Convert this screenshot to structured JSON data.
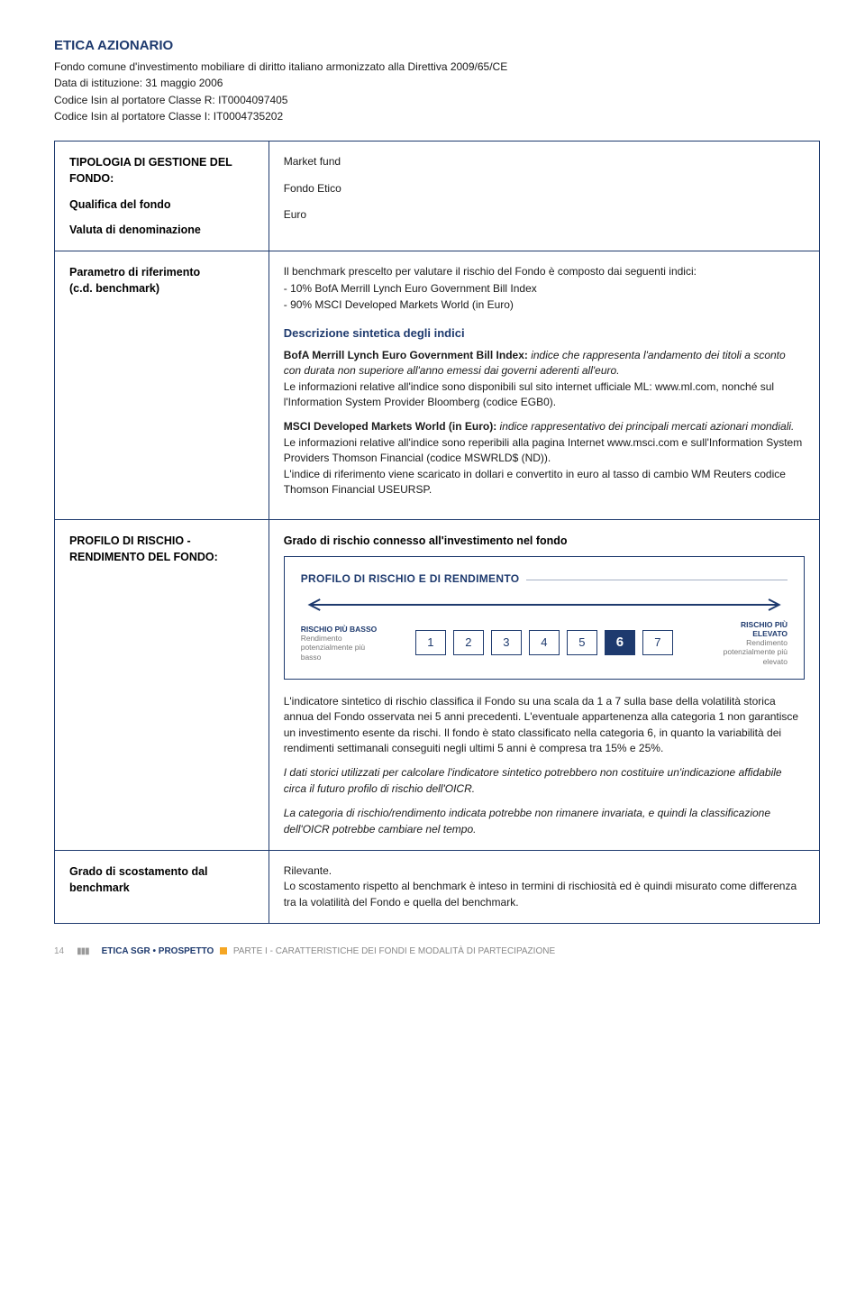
{
  "header": {
    "title": "ETICA AZIONARIO",
    "lines": [
      "Fondo comune d'investimento mobiliare di diritto italiano armonizzato alla Direttiva 2009/65/CE",
      "Data di istituzione: 31 maggio 2006",
      "Codice Isin al portatore Classe R: IT0004097405",
      "Codice Isin al portatore Classe I: IT0004735202"
    ]
  },
  "s1": {
    "l1": "TIPOLOGIA DI GESTIONE DEL FONDO:",
    "v1": "Market fund",
    "l2": "Qualifica del fondo",
    "v2": "Fondo Etico",
    "l3": "Valuta di denominazione",
    "v3": "Euro"
  },
  "s2": {
    "l1": "Parametro di riferimento",
    "l2": "(c.d. benchmark)",
    "intro": "Il benchmark prescelto per valutare il rischio del Fondo è composto dai seguenti indici:",
    "items": [
      "10% BofA Merrill Lynch Euro Government Bill Index",
      "90% MSCI Developed Markets World (in Euro)"
    ],
    "subhead": "Descrizione sintetica degli indici",
    "p1a": "BofA Merrill Lynch Euro Government Bill Index: ",
    "p1b": "indice che rappresenta l'andamento dei titoli a sconto con durata non superiore all'anno emessi dai governi aderenti all'euro.",
    "p1c": "Le informazioni relative all'indice sono disponibili sul sito internet ufficiale ML: www.ml.com, nonché sul l'Information System Provider Bloomberg (codice EGB0).",
    "p2a": "MSCI Developed Markets World (in Euro): ",
    "p2b": "indice rappresentativo dei principali mercati azionari mondiali.",
    "p2c": "Le informazioni relative all'indice sono reperibili alla pagina Internet www.msci.com e sull'Information System Providers Thomson Financial (codice MSWRLD$ (ND)).",
    "p2d": "L'indice di riferimento viene scaricato in dollari e convertito in euro al tasso di cambio WM Reuters codice Thomson Financial USEURSP."
  },
  "s3": {
    "l1": "PROFILO DI RISCHIO -",
    "l2": "RENDIMENTO DEL FONDO:",
    "heading": "Grado di rischio connesso all'investimento nel fondo",
    "boxtitle": "PROFILO DI RISCHIO E DI RENDIMENTO",
    "low_t": "RISCHIO PIÙ BASSO",
    "low_s1": "Rendimento",
    "low_s2": "potenzialmente più basso",
    "high_t": "RISCHIO PIÙ ELEVATO",
    "high_s1": "Rendimento",
    "high_s2": "potenzialmente più elevato",
    "scale": {
      "min": 1,
      "max": 7,
      "selected": 6
    },
    "arrow_color": "#1e3a6e",
    "p1": "L'indicatore sintetico di rischio classifica il Fondo su una scala da 1 a 7 sulla base della volatilità storica annua del Fondo osservata nei 5 anni precedenti. L'eventuale appartenenza alla categoria 1 non garantisce un investimento esente da rischi. Il fondo è stato classificato nella categoria 6, in quanto la variabilità dei rendimenti settimanali conseguiti negli ultimi 5 anni è compresa tra 15% e 25%.",
    "p2": "I dati storici utilizzati per calcolare l'indicatore sintetico potrebbero non costituire un'indicazione affidabile circa il futuro profilo di rischio dell'OICR.",
    "p3": "La categoria di rischio/rendimento indicata potrebbe non rimanere invariata, e quindi la classificazione dell'OICR potrebbe cambiare nel tempo."
  },
  "s4": {
    "label": "Grado di scostamento dal benchmark",
    "v1": "Rilevante.",
    "v2": "Lo scostamento rispetto al benchmark è inteso in termini di rischiosità ed è quindi misurato come differenza tra la volatilità del Fondo e quella del benchmark."
  },
  "footer": {
    "page": "14",
    "brand": "ETICA SGR",
    "sep": " • ",
    "doc": "PROSPETTO",
    "part": "PARTE I - CARATTERISTICHE DEI FONDI E MODALITÀ DI PARTECIPAZIONE"
  }
}
